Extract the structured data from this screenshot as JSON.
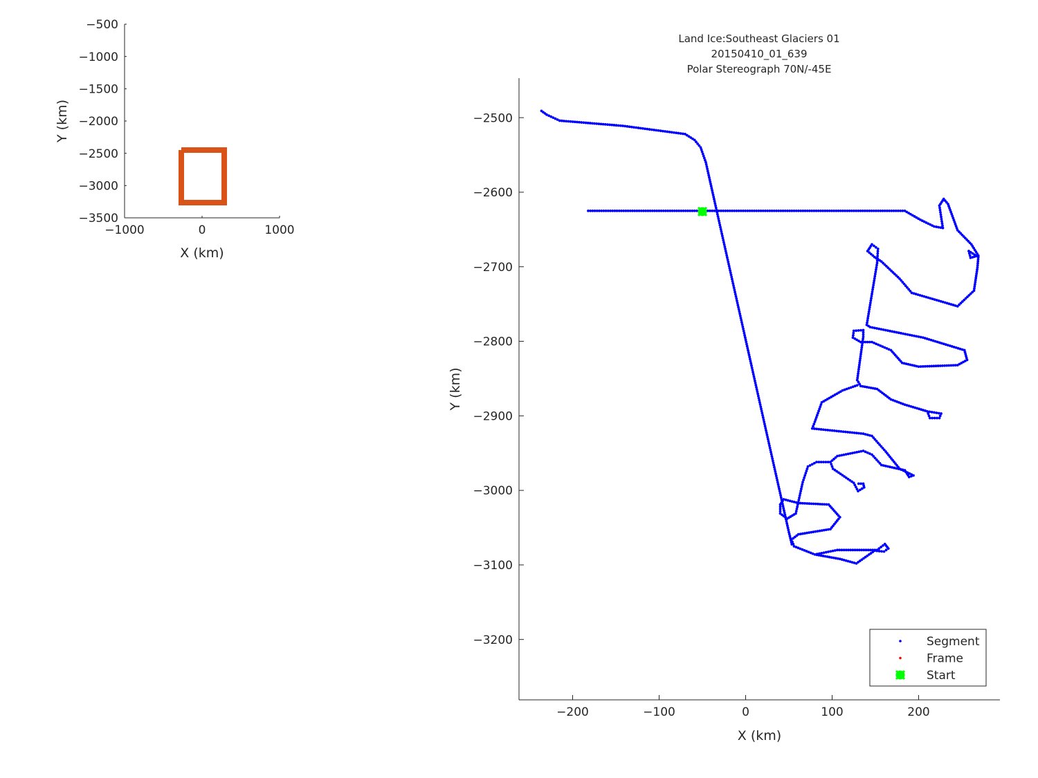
{
  "chart_data": [
    {
      "type": "line",
      "panel": "overview",
      "xlabel": "X (km)",
      "ylabel": "Y (km)",
      "xlim": [
        -1000,
        1000
      ],
      "ylim": [
        -3500,
        -500
      ],
      "xticks": [
        -1000,
        0,
        1000
      ],
      "yticks": [
        -3500,
        -3000,
        -2500,
        -2000,
        -1500,
        -1000,
        -500
      ],
      "grid": false,
      "color": "#D95319",
      "series": [
        {
          "x": [
            -268,
            286,
            286,
            -268,
            -268
          ],
          "y": [
            -2450,
            -2450,
            -3264,
            -3264,
            -2450
          ]
        }
      ]
    },
    {
      "type": "scatter",
      "panel": "main",
      "title": [
        "Land Ice:Southeast Glaciers 01",
        "20150410_01_639",
        "Polar Stereograph 70N/-45E"
      ],
      "xlabel": "X (km)",
      "ylabel": "Y (km)",
      "xlim": [
        -262,
        294
      ],
      "ylim": [
        -3281,
        -2447
      ],
      "xticks": [
        -200,
        -100,
        0,
        100,
        200
      ],
      "yticks": [
        -3200,
        -3100,
        -3000,
        -2900,
        -2800,
        -2700,
        -2600,
        -2500
      ],
      "grid": false,
      "legend_position": "bottom-right",
      "series": [
        {
          "name": "Segment",
          "color": "#0000FF",
          "tracks": [
            {
              "x": [
                -236,
                -230,
                -215,
                -142,
                -70,
                -59,
                -52,
                -46,
                50,
                54
              ],
              "y": [
                -2491,
                -2496,
                -2504,
                -2511,
                -2522,
                -2530,
                -2540,
                -2560,
                -3056,
                -3075
              ]
            },
            {
              "x": [
                -182,
                184,
                202,
                218,
                228,
                224,
                229,
                234,
                245,
                261,
                269,
                260,
                258,
                269,
                268,
                264,
                245,
                192,
                178,
                157,
                149,
                141,
                146,
                153,
                152,
                140,
                144,
                205,
                253,
                256,
                245,
                200,
                181,
                168,
                146,
                133,
                124,
                125,
                136,
                136,
                129,
                133,
                152,
                168,
                184,
                210,
                226,
                224,
                213,
                210
              ],
              "y": [
                -2625,
                -2625,
                -2637,
                -2646,
                -2648,
                -2618,
                -2609,
                -2616,
                -2651,
                -2670,
                -2685,
                -2688,
                -2679,
                -2687,
                -2701,
                -2732,
                -2753,
                -2735,
                -2716,
                -2693,
                -2687,
                -2679,
                -2670,
                -2676,
                -2695,
                -2778,
                -2781,
                -2795,
                -2812,
                -2825,
                -2832,
                -2834,
                -2829,
                -2812,
                -2801,
                -2801,
                -2795,
                -2786,
                -2785,
                -2794,
                -2852,
                -2860,
                -2864,
                -2878,
                -2885,
                -2894,
                -2897,
                -2903,
                -2903,
                -2894
              ]
            },
            {
              "x": [
                129,
                112,
                88,
                80,
                77,
                136,
                146,
                162,
                178,
                194,
                189,
                184,
                157,
                146,
                136,
                106,
                98,
                101,
                125,
                130,
                137,
                136,
                128
              ],
              "y": [
                -2859,
                -2866,
                -2882,
                -2908,
                -2917,
                -2924,
                -2927,
                -2948,
                -2971,
                -2980,
                -2982,
                -2973,
                -2966,
                -2952,
                -2947,
                -2954,
                -2962,
                -2971,
                -2990,
                -3001,
                -2996,
                -2991,
                -2991
              ]
            },
            {
              "x": [
                98,
                82,
                72,
                66,
                58,
                48,
                40,
                40,
                44,
                61,
                96,
                109,
                98,
                61,
                53,
                56,
                80,
                106,
                152,
                161,
                165,
                160,
                149,
                128,
                109,
                80
              ],
              "y": [
                -2962,
                -2962,
                -2968,
                -2989,
                -3031,
                -3038,
                -3031,
                -3019,
                -3012,
                -3017,
                -3019,
                -3036,
                -3052,
                -3059,
                -3066,
                -3075,
                -3086,
                -3080,
                -3080,
                -3072,
                -3078,
                -3082,
                -3081,
                -3098,
                -3092,
                -3086
              ]
            }
          ]
        },
        {
          "name": "Frame",
          "color": "#FF0000",
          "tracks": []
        },
        {
          "name": "Start",
          "color": "#00FF00",
          "x": [
            -50
          ],
          "y": [
            -2626
          ]
        }
      ]
    }
  ]
}
